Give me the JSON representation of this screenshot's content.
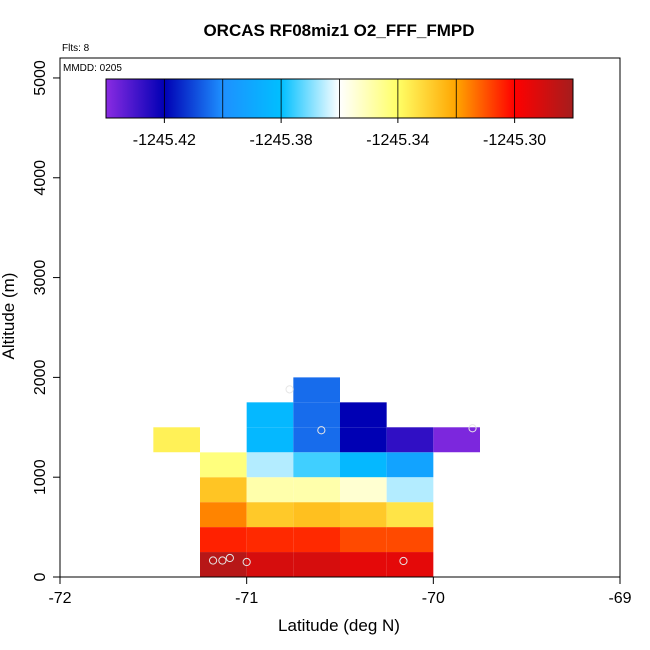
{
  "chart_data": {
    "type": "heatmap",
    "title": "ORCAS RF08miz1 O2_FFF_FMPD",
    "xlabel": "Latitude (deg N)",
    "ylabel": "Altitude (m)",
    "xlim": [
      -72,
      -69
    ],
    "ylim": [
      0,
      5200
    ],
    "x_ticks": [
      -72,
      -71,
      -70,
      -69
    ],
    "x_tick_labels": [
      "-72",
      "-71",
      "-70",
      "-69"
    ],
    "y_ticks": [
      0,
      1000,
      2000,
      3000,
      4000,
      5000
    ],
    "y_tick_labels": [
      "0",
      "1000",
      "2000",
      "3000",
      "4000",
      "5000"
    ],
    "annotations": {
      "flights": "Flts: 8",
      "mmdd": "MMDD: 0205"
    },
    "colorbar": {
      "range": [
        -1245.44,
        -1245.28
      ],
      "ticks": [
        -1245.42,
        -1245.38,
        -1245.34,
        -1245.3
      ],
      "tick_labels": [
        "-1245.42",
        "-1245.38",
        "-1245.34",
        "-1245.30"
      ],
      "colors": [
        "#8a2be2",
        "#0000b4",
        "#1e90ff",
        "#00bfff",
        "#ffffff",
        "#ffff66",
        "#ffa500",
        "#ff0000",
        "#a51d1d"
      ]
    },
    "cells": [
      {
        "lat0": -71.25,
        "lat1": -71.0,
        "alt0": 0,
        "alt1": 250,
        "value": -1245.284
      },
      {
        "lat0": -71.0,
        "lat1": -70.75,
        "alt0": 0,
        "alt1": 250,
        "value": -1245.291
      },
      {
        "lat0": -70.75,
        "lat1": -70.5,
        "alt0": 0,
        "alt1": 250,
        "value": -1245.291
      },
      {
        "lat0": -70.5,
        "lat1": -70.25,
        "alt0": 0,
        "alt1": 250,
        "value": -1245.294
      },
      {
        "lat0": -70.25,
        "lat1": -70.0,
        "alt0": 0,
        "alt1": 250,
        "value": -1245.294
      },
      {
        "lat0": -71.25,
        "lat1": -71.0,
        "alt0": 250,
        "alt1": 500,
        "value": -1245.304
      },
      {
        "lat0": -71.0,
        "lat1": -70.75,
        "alt0": 250,
        "alt1": 500,
        "value": -1245.305
      },
      {
        "lat0": -70.75,
        "lat1": -70.5,
        "alt0": 250,
        "alt1": 500,
        "value": -1245.305
      },
      {
        "lat0": -70.5,
        "lat1": -70.25,
        "alt0": 250,
        "alt1": 500,
        "value": -1245.309
      },
      {
        "lat0": -70.25,
        "lat1": -70.0,
        "alt0": 250,
        "alt1": 500,
        "value": -1245.309
      },
      {
        "lat0": -71.25,
        "lat1": -71.0,
        "alt0": 500,
        "alt1": 750,
        "value": -1245.316
      },
      {
        "lat0": -71.0,
        "lat1": -70.75,
        "alt0": 500,
        "alt1": 750,
        "value": -1245.328
      },
      {
        "lat0": -70.75,
        "lat1": -70.5,
        "alt0": 500,
        "alt1": 750,
        "value": -1245.326
      },
      {
        "lat0": -70.5,
        "lat1": -70.25,
        "alt0": 500,
        "alt1": 750,
        "value": -1245.328
      },
      {
        "lat0": -70.25,
        "lat1": -70.0,
        "alt0": 500,
        "alt1": 750,
        "value": -1245.334
      },
      {
        "lat0": -71.25,
        "lat1": -71.0,
        "alt0": 750,
        "alt1": 1000,
        "value": -1245.327
      },
      {
        "lat0": -71.0,
        "lat1": -70.75,
        "alt0": 750,
        "alt1": 1000,
        "value": -1245.349
      },
      {
        "lat0": -70.75,
        "lat1": -70.5,
        "alt0": 750,
        "alt1": 1000,
        "value": -1245.349
      },
      {
        "lat0": -70.5,
        "lat1": -70.25,
        "alt0": 750,
        "alt1": 1000,
        "value": -1245.354
      },
      {
        "lat0": -70.25,
        "lat1": -70.0,
        "alt0": 750,
        "alt1": 1000,
        "value": -1245.366
      },
      {
        "lat0": -71.25,
        "lat1": -71.0,
        "alt0": 1000,
        "alt1": 1250,
        "value": -1245.343
      },
      {
        "lat0": -71.0,
        "lat1": -70.75,
        "alt0": 1000,
        "alt1": 1250,
        "value": -1245.366
      },
      {
        "lat0": -70.75,
        "lat1": -70.5,
        "alt0": 1000,
        "alt1": 1250,
        "value": -1245.375
      },
      {
        "lat0": -70.5,
        "lat1": -70.25,
        "alt0": 1000,
        "alt1": 1250,
        "value": -1245.383
      },
      {
        "lat0": -70.25,
        "lat1": -70.0,
        "alt0": 1000,
        "alt1": 1250,
        "value": -1245.392
      },
      {
        "lat0": -71.5,
        "lat1": -71.25,
        "alt0": 1250,
        "alt1": 1500,
        "value": -1245.337
      },
      {
        "lat0": -71.25,
        "lat1": -71.0,
        "alt0": 1250,
        "alt1": 1500,
        "value": -1245.36
      },
      {
        "lat0": -71.0,
        "lat1": -70.75,
        "alt0": 1250,
        "alt1": 1500,
        "value": -1245.383
      },
      {
        "lat0": -70.75,
        "lat1": -70.5,
        "alt0": 1250,
        "alt1": 1500,
        "value": -1245.405
      },
      {
        "lat0": -70.5,
        "lat1": -70.25,
        "alt0": 1250,
        "alt1": 1500,
        "value": -1245.42
      },
      {
        "lat0": -70.25,
        "lat1": -70.0,
        "alt0": 1250,
        "alt1": 1500,
        "value": -1245.427
      },
      {
        "lat0": -70.0,
        "lat1": -69.75,
        "alt0": 1250,
        "alt1": 1500,
        "value": -1245.438
      },
      {
        "lat0": -71.0,
        "lat1": -70.75,
        "alt0": 1500,
        "alt1": 1750,
        "value": -1245.383
      },
      {
        "lat0": -70.75,
        "lat1": -70.5,
        "alt0": 1500,
        "alt1": 1750,
        "value": -1245.405
      },
      {
        "lat0": -70.5,
        "lat1": -70.25,
        "alt0": 1500,
        "alt1": 1750,
        "value": -1245.42
      },
      {
        "lat0": -70.75,
        "lat1": -70.5,
        "alt0": 1750,
        "alt1": 2000,
        "value": -1245.405
      }
    ],
    "points": [
      {
        "lat": -71.18,
        "alt": 165
      },
      {
        "lat": -71.13,
        "alt": 165
      },
      {
        "lat": -71.09,
        "alt": 190
      },
      {
        "lat": -71.0,
        "alt": 150
      },
      {
        "lat": -70.16,
        "alt": 160
      },
      {
        "lat": -70.6,
        "alt": 1470
      },
      {
        "lat": -70.77,
        "alt": 1880
      },
      {
        "lat": -69.79,
        "alt": 1490
      }
    ]
  }
}
